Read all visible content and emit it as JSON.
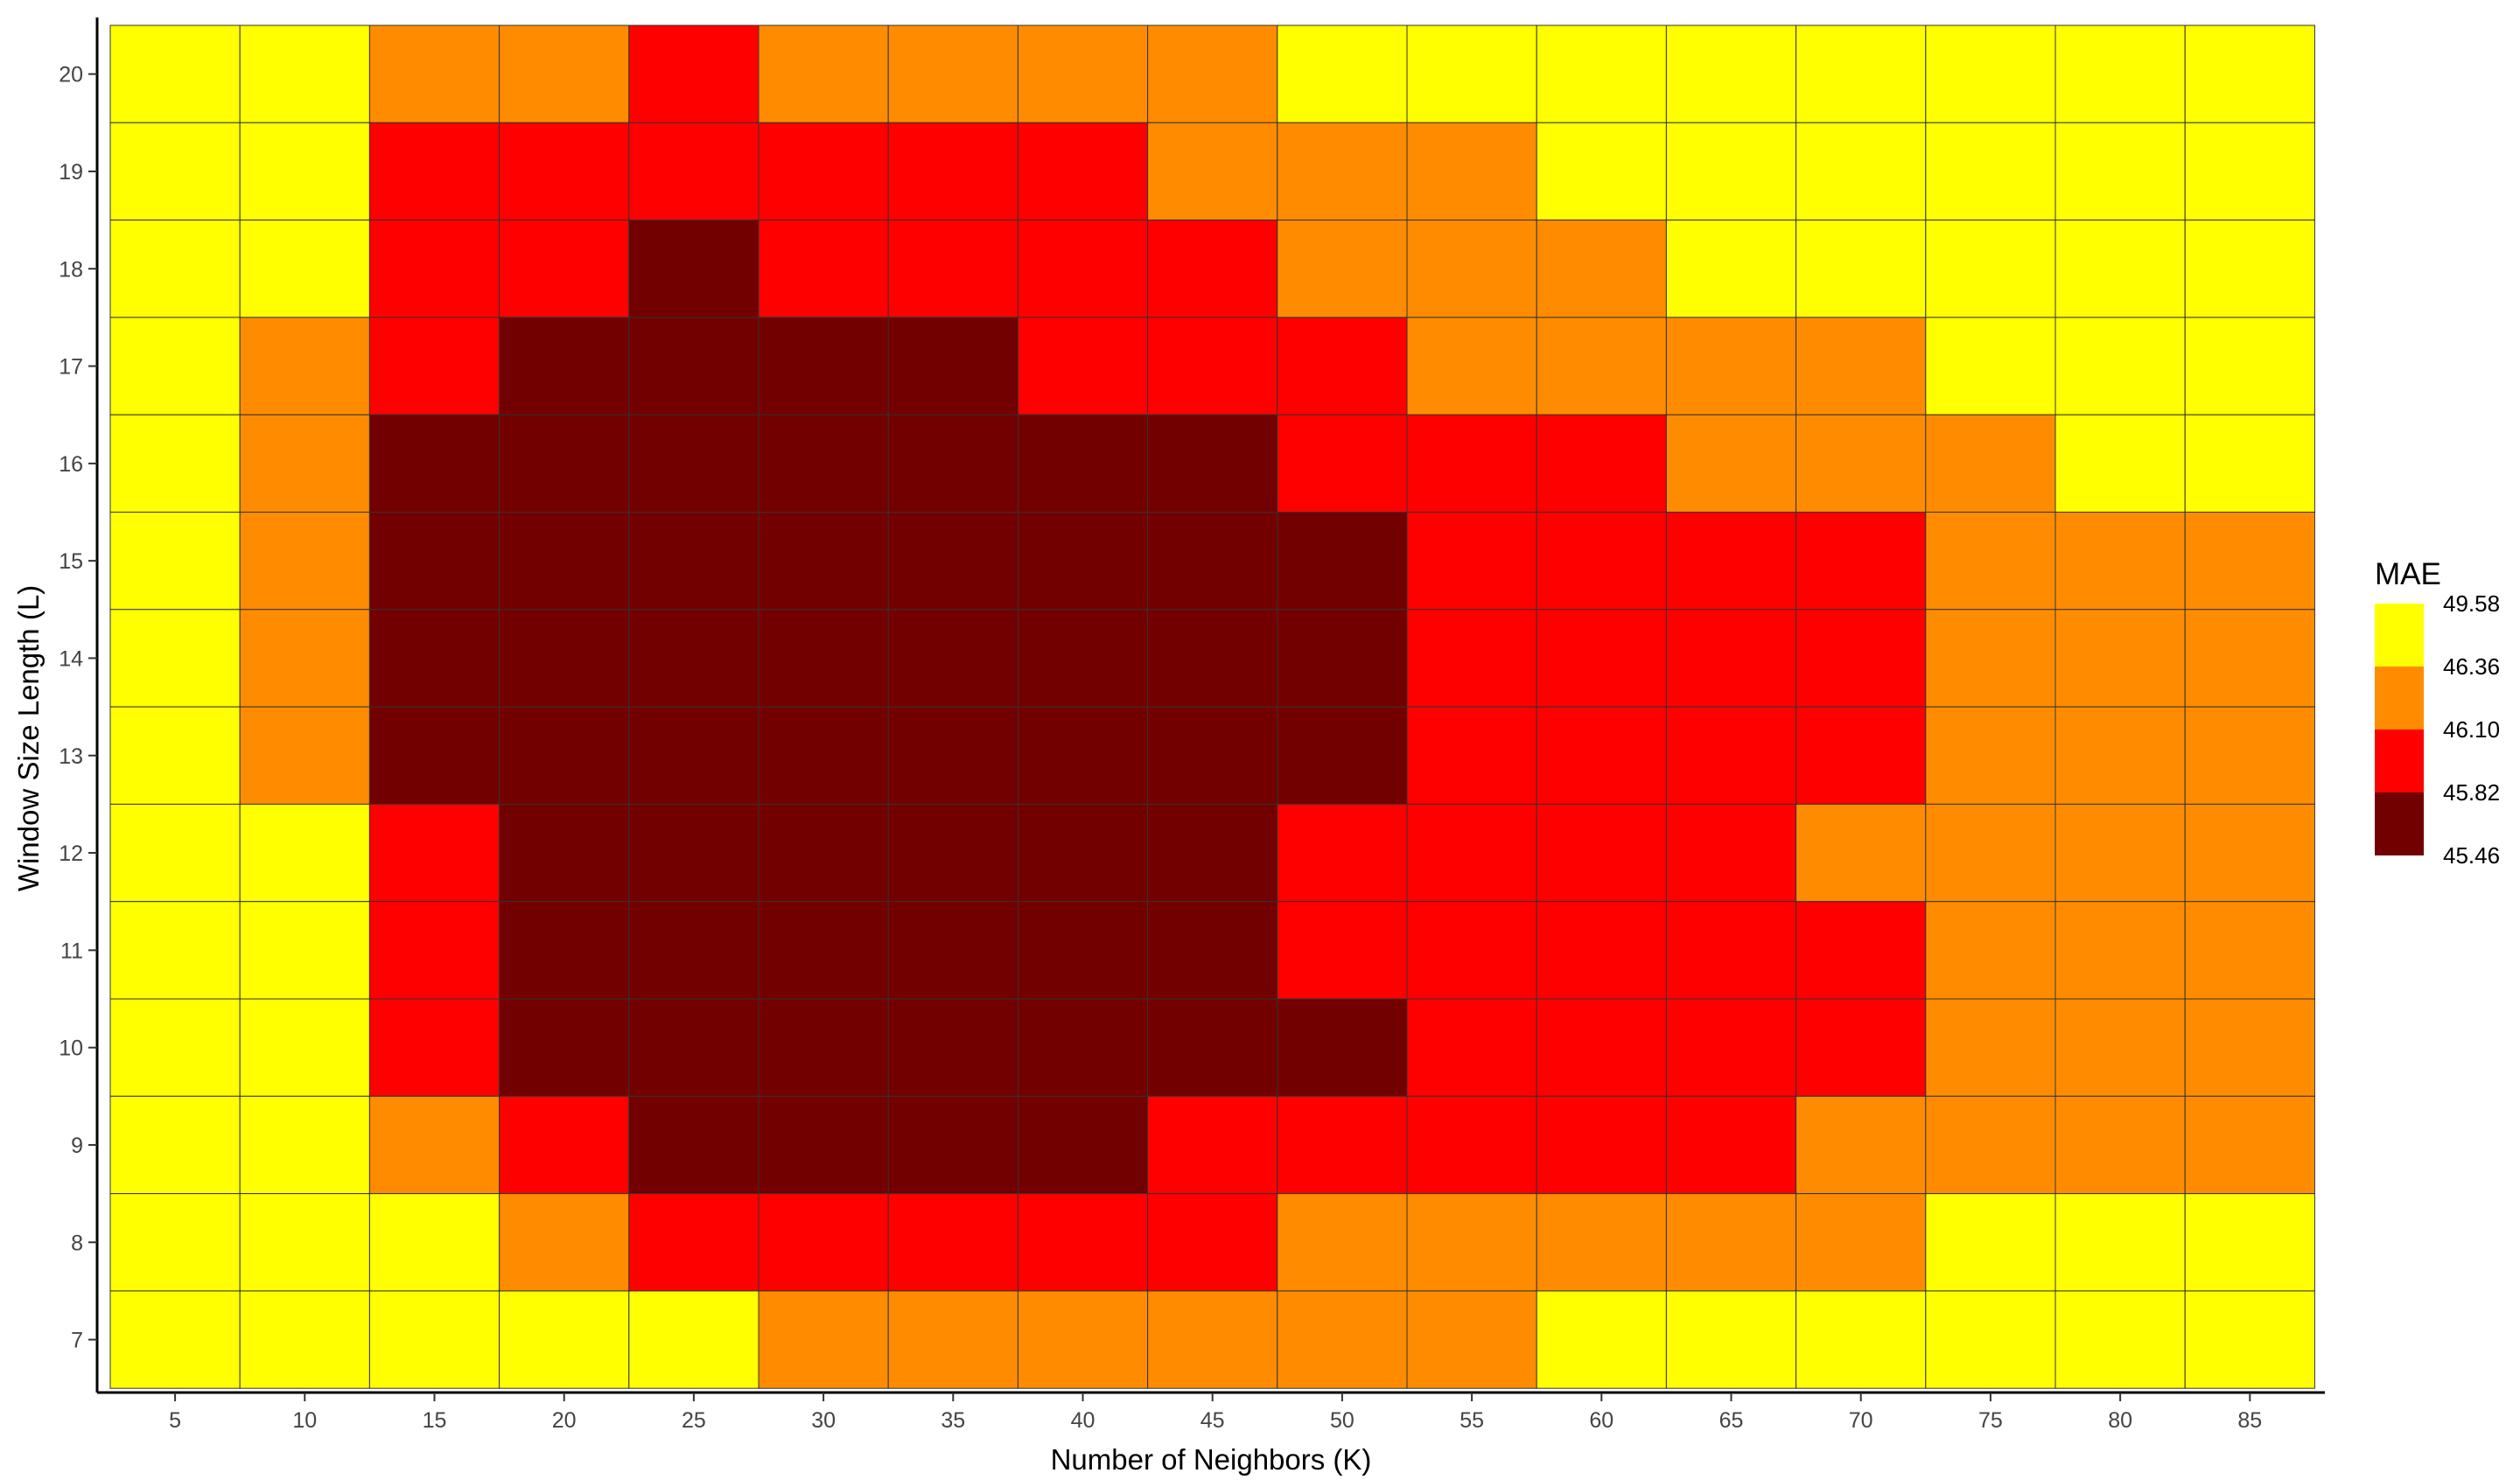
{
  "chart_data": {
    "type": "heatmap",
    "xlabel": "Number of Neighbors (K)",
    "ylabel": "Window Size Length (L)",
    "x": [
      5,
      10,
      15,
      20,
      25,
      30,
      35,
      40,
      45,
      50,
      55,
      60,
      65,
      70,
      75,
      80,
      85
    ],
    "y": [
      20,
      19,
      18,
      17,
      16,
      15,
      14,
      13,
      12,
      11,
      10,
      9,
      8,
      7
    ],
    "grid": false,
    "legend": {
      "title": "MAE",
      "position": "right",
      "labels": [
        "49.58",
        "46.36",
        "46.10",
        "45.82",
        "45.46"
      ],
      "colors": [
        "#FFFF00",
        "#FF8C00",
        "#FF0000",
        "#730000"
      ]
    },
    "class_colors": [
      "#730000",
      "#FF0000",
      "#FF8C00",
      "#FFFF00"
    ],
    "class_ranges": [
      "45.46 - 45.82",
      "45.82 - 46.10",
      "46.10 - 46.36",
      "46.36 - 49.58"
    ],
    "cell_classes": [
      [
        3,
        3,
        2,
        2,
        1,
        2,
        2,
        2,
        2,
        3,
        3,
        3,
        3,
        3,
        3,
        3,
        3
      ],
      [
        3,
        3,
        1,
        1,
        1,
        1,
        1,
        1,
        2,
        2,
        2,
        3,
        3,
        3,
        3,
        3,
        3
      ],
      [
        3,
        3,
        1,
        1,
        0,
        1,
        1,
        1,
        1,
        2,
        2,
        2,
        3,
        3,
        3,
        3,
        3
      ],
      [
        3,
        2,
        1,
        0,
        0,
        0,
        0,
        1,
        1,
        1,
        2,
        2,
        2,
        2,
        3,
        3,
        3
      ],
      [
        3,
        2,
        0,
        0,
        0,
        0,
        0,
        0,
        0,
        1,
        1,
        1,
        2,
        2,
        2,
        3,
        3
      ],
      [
        3,
        2,
        0,
        0,
        0,
        0,
        0,
        0,
        0,
        0,
        1,
        1,
        1,
        1,
        2,
        2,
        2
      ],
      [
        3,
        2,
        0,
        0,
        0,
        0,
        0,
        0,
        0,
        0,
        1,
        1,
        1,
        1,
        2,
        2,
        2
      ],
      [
        3,
        2,
        0,
        0,
        0,
        0,
        0,
        0,
        0,
        0,
        1,
        1,
        1,
        1,
        2,
        2,
        2
      ],
      [
        3,
        3,
        1,
        0,
        0,
        0,
        0,
        0,
        0,
        1,
        1,
        1,
        1,
        2,
        2,
        2,
        2
      ],
      [
        3,
        3,
        1,
        0,
        0,
        0,
        0,
        0,
        0,
        1,
        1,
        1,
        1,
        1,
        2,
        2,
        2
      ],
      [
        3,
        3,
        1,
        0,
        0,
        0,
        0,
        0,
        0,
        0,
        1,
        1,
        1,
        1,
        2,
        2,
        2
      ],
      [
        3,
        3,
        2,
        1,
        0,
        0,
        0,
        0,
        1,
        1,
        1,
        1,
        1,
        2,
        2,
        2,
        2
      ],
      [
        3,
        3,
        3,
        2,
        1,
        1,
        1,
        1,
        1,
        2,
        2,
        2,
        2,
        2,
        3,
        3,
        3
      ],
      [
        3,
        3,
        3,
        3,
        3,
        2,
        2,
        2,
        2,
        2,
        2,
        3,
        3,
        3,
        3,
        3,
        3
      ]
    ]
  }
}
